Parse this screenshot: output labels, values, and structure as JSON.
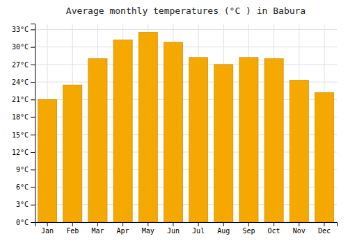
{
  "chart_data": {
    "type": "bar",
    "title": "Average monthly temperatures (°C ) in Babura",
    "categories": [
      "Jan",
      "Feb",
      "Mar",
      "Apr",
      "May",
      "Jun",
      "Jul",
      "Aug",
      "Sep",
      "Oct",
      "Nov",
      "Dec"
    ],
    "values": [
      21.0,
      23.5,
      28.0,
      31.2,
      32.5,
      30.8,
      28.2,
      27.0,
      28.2,
      28.0,
      24.3,
      22.2
    ],
    "color": "#F5A800",
    "ylim": [
      0,
      34
    ],
    "yticks": [
      {
        "value": 0,
        "label": "0°C"
      },
      {
        "value": 3,
        "label": "3°C"
      },
      {
        "value": 6,
        "label": "6°C"
      },
      {
        "value": 9,
        "label": "9°C"
      },
      {
        "value": 12,
        "label": "12°C"
      },
      {
        "value": 15,
        "label": "15°C"
      },
      {
        "value": 18,
        "label": "18°C"
      },
      {
        "value": 21,
        "label": "21°C"
      },
      {
        "value": 24,
        "label": "24°C"
      },
      {
        "value": 27,
        "label": "27°C"
      },
      {
        "value": 30,
        "label": "30°C"
      },
      {
        "value": 33,
        "label": "33°C"
      }
    ],
    "grid": true
  }
}
